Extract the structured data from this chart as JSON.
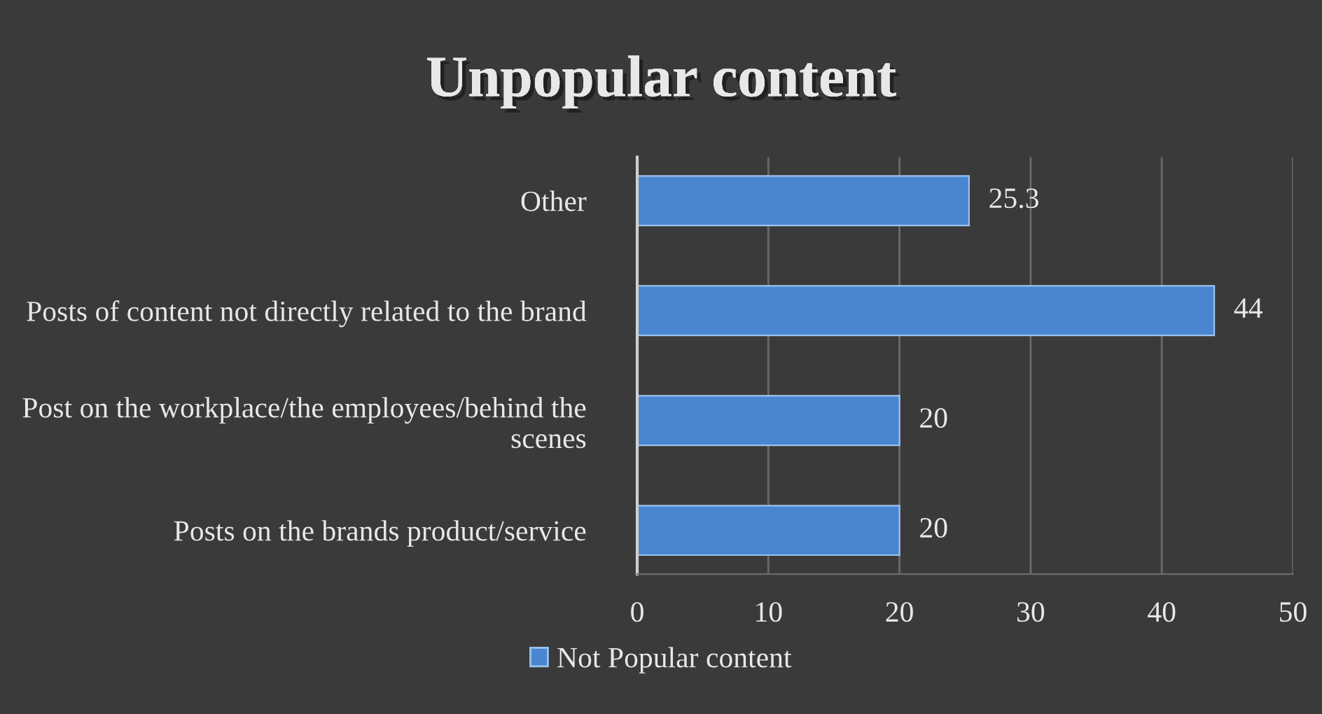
{
  "chart_data": {
    "type": "bar",
    "orientation": "horizontal",
    "title": "Unpopular content",
    "categories": [
      "Other",
      "Posts of content not directly related to the brand",
      "Post on the workplace/the employees/behind the scenes",
      "Posts on the brands product/service"
    ],
    "series": [
      {
        "name": "Not Popular content",
        "color": "#4a86d0",
        "values": [
          25.3,
          44,
          20,
          20
        ]
      }
    ],
    "data_labels": true,
    "xlim": [
      0,
      50
    ],
    "xticks": [
      0,
      10,
      20,
      30,
      40,
      50
    ],
    "grid": "x",
    "legend": "bottom"
  }
}
